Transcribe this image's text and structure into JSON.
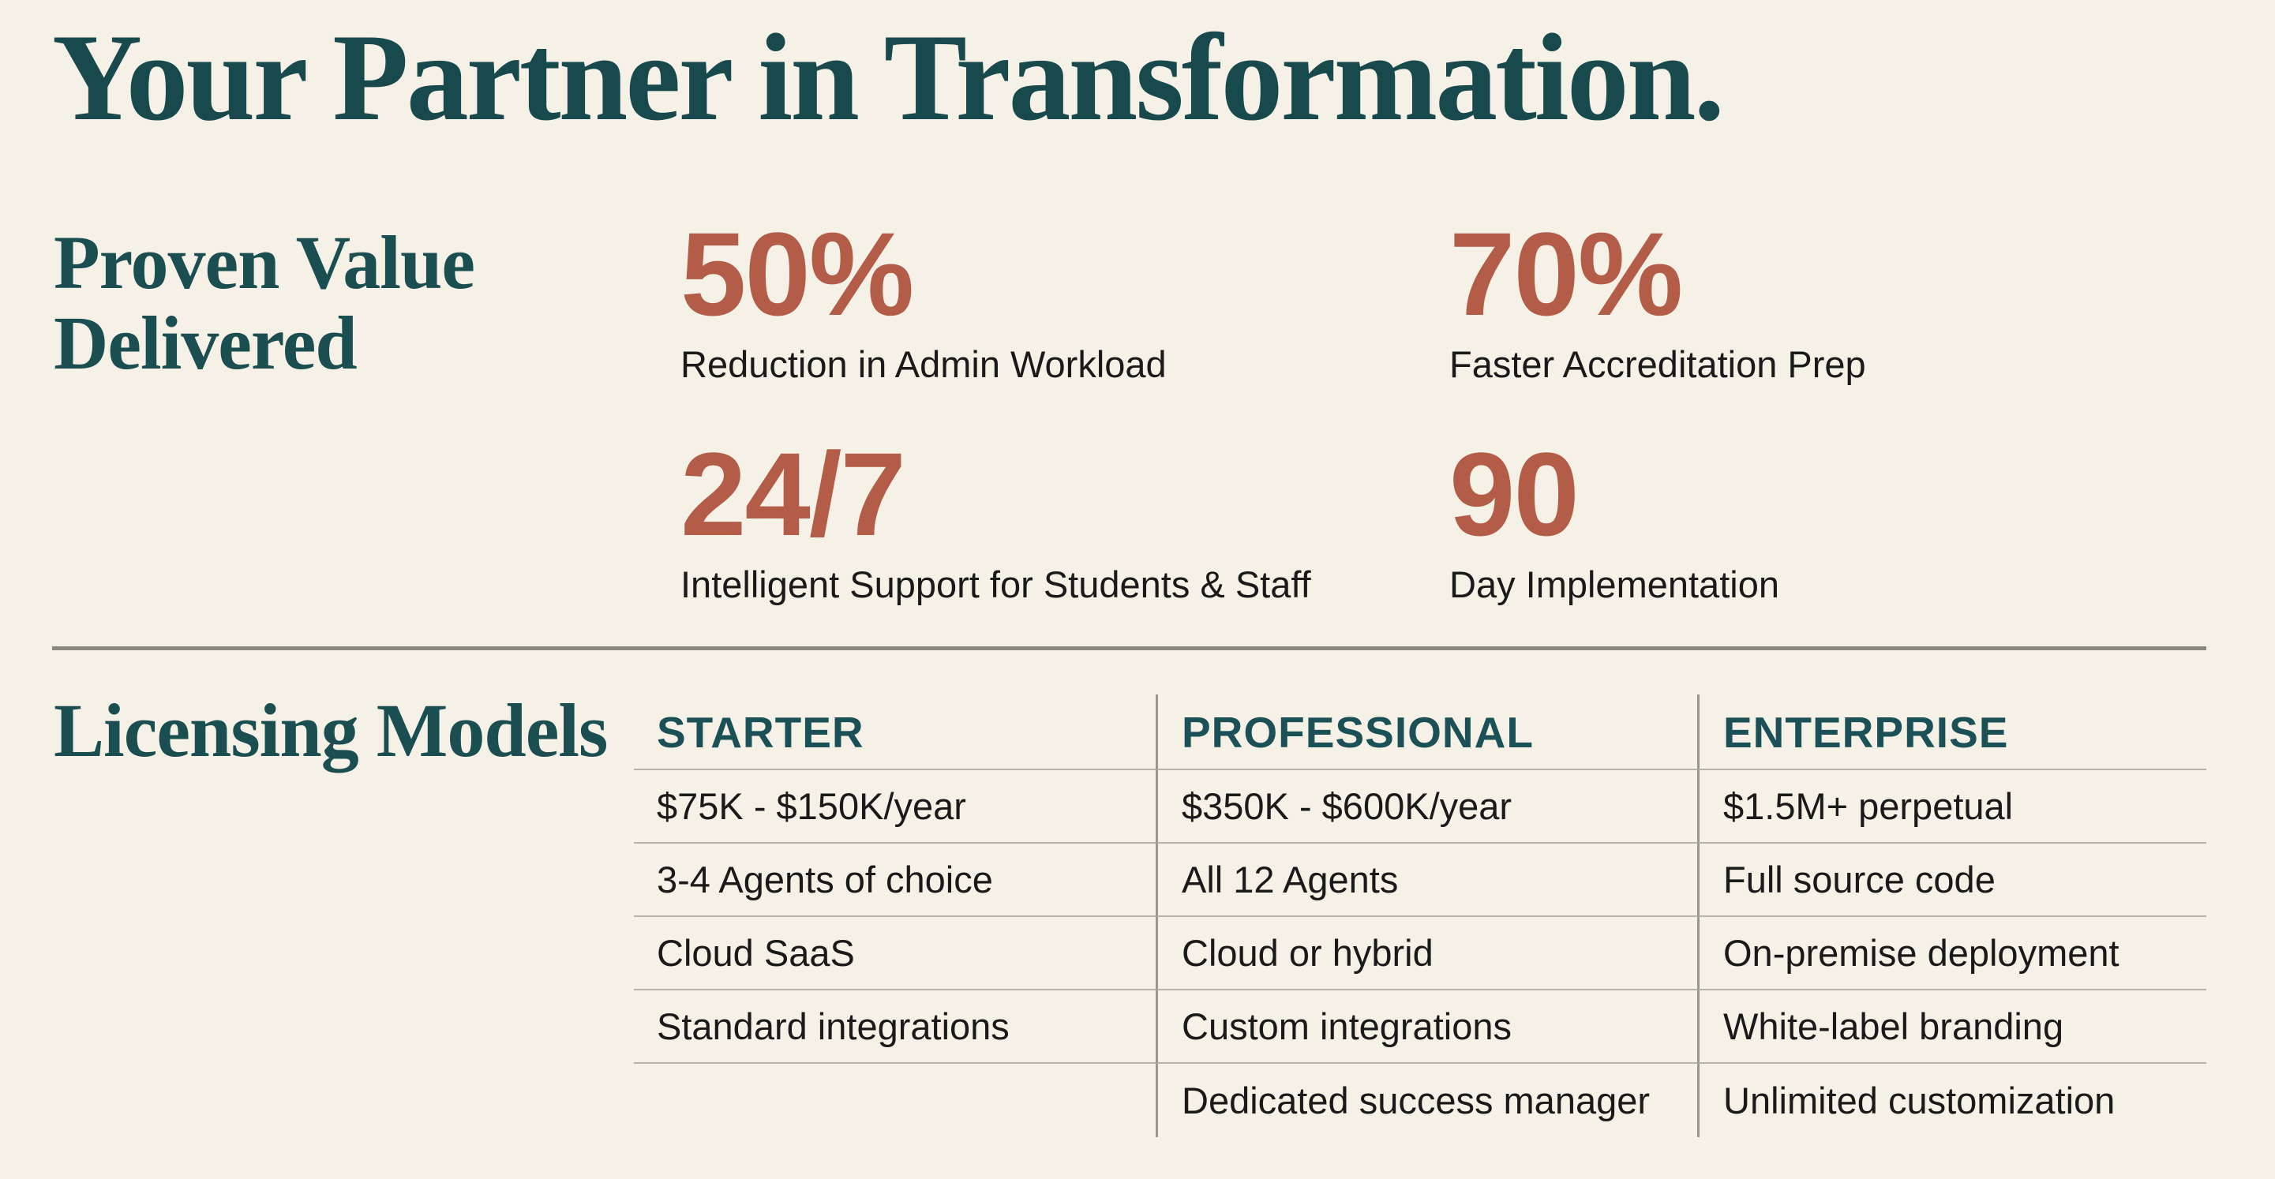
{
  "slide": {
    "title": "Your Partner in Transformation.",
    "proven_value": {
      "heading_line1": "Proven Value",
      "heading_line2": "Delivered",
      "stats": [
        {
          "value": "50%",
          "label": "Reduction in Admin Workload"
        },
        {
          "value": "70%",
          "label": "Faster Accreditation Prep"
        },
        {
          "value": "24/7",
          "label": "Intelligent Support for Students & Staff"
        },
        {
          "value": "90",
          "label": "Day Implementation"
        }
      ]
    },
    "licensing": {
      "heading": "Licensing Models",
      "columns": [
        {
          "name": "STARTER",
          "rows": [
            "$75K - $150K/year",
            "3-4 Agents of choice",
            "Cloud SaaS",
            "Standard integrations",
            ""
          ]
        },
        {
          "name": "PROFESSIONAL",
          "rows": [
            "$350K - $600K/year",
            "All 12 Agents",
            "Cloud or hybrid",
            "Custom integrations",
            "Dedicated success manager"
          ]
        },
        {
          "name": "ENTERPRISE",
          "rows": [
            "$1.5M+ perpetual",
            "Full source code",
            "On-premise deployment",
            "White-label branding",
            "Unlimited customization"
          ]
        }
      ]
    },
    "colors": {
      "background": "#f5f1e6",
      "teal_heading": "#1b4e51",
      "teal_table_header": "#1b5156",
      "terracotta_accent": "#b35d49",
      "body_text": "#1a1a1a",
      "divider_gray": "#8a8980"
    }
  }
}
